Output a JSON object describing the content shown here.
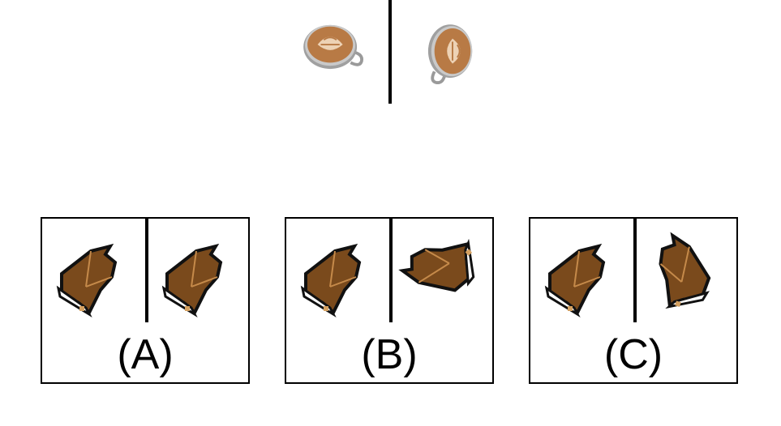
{
  "question": {
    "example_left": {
      "icon": "latte-cup-icon",
      "rotation_deg": 0
    },
    "example_right": {
      "icon": "latte-cup-icon",
      "rotation_deg": -90
    }
  },
  "options": [
    {
      "label": "(A)",
      "left_icon": "grand-piano-icon",
      "right_icon": "grand-piano-icon"
    },
    {
      "label": "(B)",
      "left_icon": "grand-piano-icon",
      "right_icon": "grand-piano-icon"
    },
    {
      "label": "(C)",
      "left_icon": "grand-piano-icon",
      "right_icon": "grand-piano-icon"
    }
  ],
  "colors": {
    "coffee_foam": "#f3dcc1",
    "coffee_crema": "#b87a45",
    "cup_rim": "#9a9a9a",
    "piano_body": "#7a4a1c",
    "piano_outline": "#111111"
  }
}
